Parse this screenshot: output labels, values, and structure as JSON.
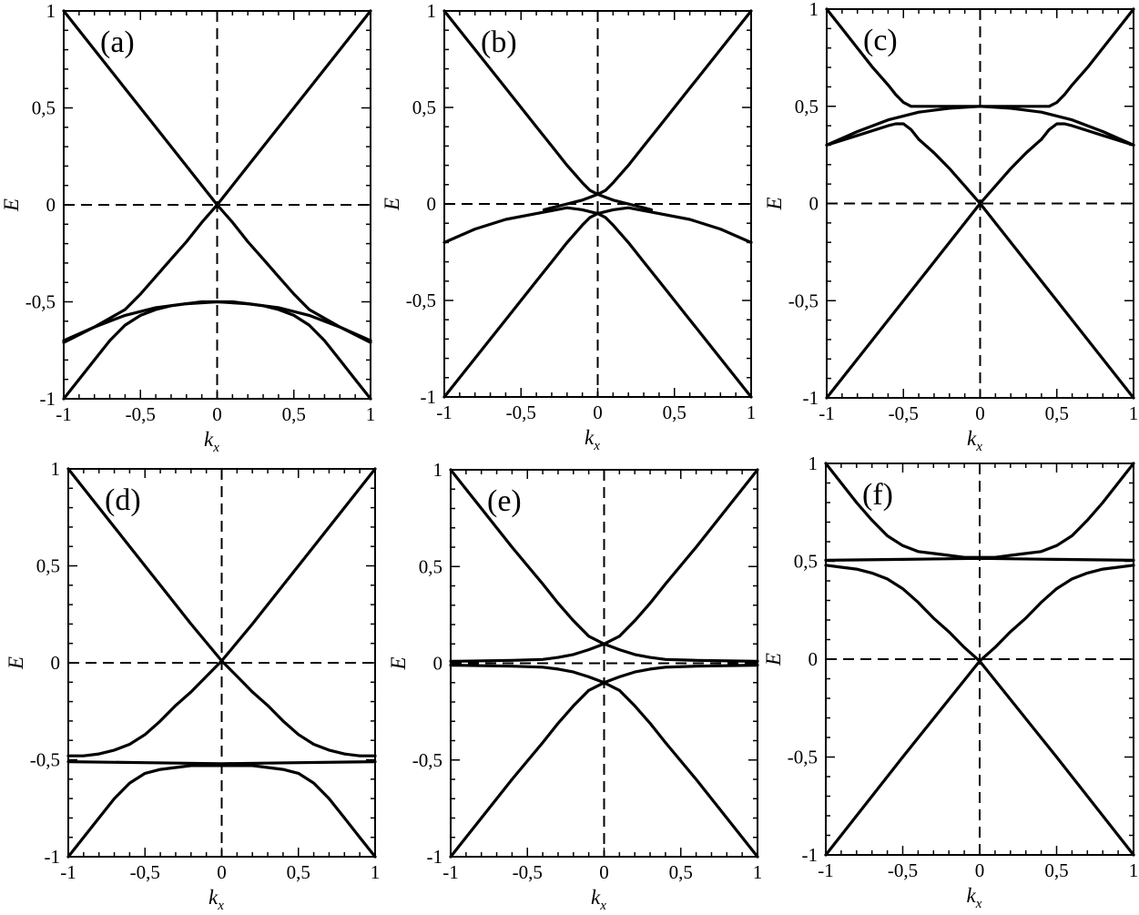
{
  "chart_data": [
    {
      "type": "line",
      "panel_label": "(a)",
      "xlabel": "k",
      "xlabel_sub": "x",
      "ylabel": "E",
      "xlim": [
        -1,
        1
      ],
      "ylim": [
        -1,
        1
      ],
      "xticks": [
        "-1",
        "-0,5",
        "0",
        "0,5",
        "1"
      ],
      "yticks": [
        "-1",
        "-0,5",
        "0",
        "0,5",
        "1"
      ],
      "reference_lines": {
        "x": 0,
        "y": 0,
        "style": "dashed"
      },
      "series": [
        {
          "x": [
            -1,
            -0.8,
            -0.6,
            -0.4,
            -0.2,
            0,
            0.2,
            0.4,
            0.6,
            0.8,
            1
          ],
          "y": [
            1,
            0.8,
            0.6,
            0.4,
            0.2,
            0,
            0.2,
            0.4,
            0.6,
            0.8,
            1
          ]
        },
        {
          "x": [
            -1,
            -0.8,
            -0.6,
            -0.5,
            -0.4,
            -0.3,
            -0.2,
            -0.1,
            0,
            0.1,
            0.2,
            0.3,
            0.4,
            0.5,
            0.6,
            0.8,
            1
          ],
          "y": [
            -0.71,
            -0.63,
            -0.54,
            -0.46,
            -0.37,
            -0.28,
            -0.19,
            -0.09,
            0,
            -0.09,
            -0.19,
            -0.28,
            -0.37,
            -0.46,
            -0.54,
            -0.63,
            -0.71
          ]
        },
        {
          "x": [
            -1,
            -0.8,
            -0.6,
            -0.4,
            -0.2,
            0,
            0.2,
            0.4,
            0.6,
            0.8,
            1
          ],
          "y": [
            -0.7,
            -0.63,
            -0.57,
            -0.53,
            -0.51,
            -0.5,
            -0.51,
            -0.53,
            -0.57,
            -0.63,
            -0.7
          ]
        },
        {
          "x": [
            -1,
            -0.9,
            -0.8,
            -0.7,
            -0.6,
            -0.5,
            -0.4,
            -0.3,
            -0.2,
            -0.1,
            0,
            0.1,
            0.2,
            0.3,
            0.4,
            0.5,
            0.6,
            0.7,
            0.8,
            0.9,
            1
          ],
          "y": [
            -1,
            -0.9,
            -0.8,
            -0.7,
            -0.62,
            -0.57,
            -0.54,
            -0.52,
            -0.51,
            -0.5,
            -0.5,
            -0.5,
            -0.51,
            -0.52,
            -0.54,
            -0.57,
            -0.62,
            -0.7,
            -0.8,
            -0.9,
            -1
          ]
        }
      ]
    },
    {
      "type": "line",
      "panel_label": "(b)",
      "xlabel": "k",
      "xlabel_sub": "x",
      "ylabel": "E",
      "xlim": [
        -1,
        1
      ],
      "ylim": [
        -1,
        1
      ],
      "xticks": [
        "-1",
        "-0,5",
        "0",
        "0,5",
        "1"
      ],
      "yticks": [
        "-1",
        "-0,5",
        "0",
        "0,5",
        "1"
      ],
      "reference_lines": {
        "x": 0,
        "y": 0,
        "style": "dashed"
      },
      "series": [
        {
          "x": [
            -1,
            -0.8,
            -0.6,
            -0.4,
            -0.3,
            -0.2,
            -0.1,
            -0.05,
            0,
            0.05,
            0.1,
            0.2,
            0.3,
            0.4,
            0.6,
            0.8,
            1
          ],
          "y": [
            1,
            0.8,
            0.6,
            0.4,
            0.3,
            0.2,
            0.11,
            0.07,
            0.05,
            0.07,
            0.11,
            0.2,
            0.3,
            0.4,
            0.6,
            0.8,
            1
          ]
        },
        {
          "x": [
            -1,
            -0.8,
            -0.6,
            -0.4,
            -0.3,
            -0.2,
            -0.1,
            -0.05,
            0,
            0.05,
            0.1,
            0.2,
            0.3,
            0.4,
            0.6,
            0.8,
            1
          ],
          "y": [
            -1,
            -0.8,
            -0.6,
            -0.4,
            -0.3,
            -0.2,
            -0.11,
            -0.07,
            -0.05,
            -0.07,
            -0.11,
            -0.2,
            -0.3,
            -0.4,
            -0.6,
            -0.8,
            -1
          ]
        },
        {
          "x": [
            -0.35,
            -0.3,
            -0.2,
            -0.1,
            -0.05,
            0,
            0.05,
            0.1,
            0.2,
            0.3,
            0.35
          ],
          "y": [
            -0.03,
            -0.02,
            0.0,
            0.02,
            0.035,
            0.05,
            0.035,
            0.02,
            0.0,
            -0.02,
            -0.03
          ]
        },
        {
          "x": [
            -1,
            -0.8,
            -0.6,
            -0.4,
            -0.2,
            -0.1,
            0,
            0.1,
            0.2,
            0.4,
            0.6,
            0.8,
            1
          ],
          "y": [
            -0.2,
            -0.13,
            -0.08,
            -0.05,
            -0.02,
            -0.03,
            -0.05,
            -0.03,
            -0.02,
            -0.05,
            -0.08,
            -0.13,
            -0.2
          ]
        }
      ]
    },
    {
      "type": "line",
      "panel_label": "(c)",
      "xlabel": "k",
      "xlabel_sub": "x",
      "ylabel": "E",
      "xlim": [
        -1,
        1
      ],
      "ylim": [
        -1,
        1
      ],
      "xticks": [
        "-1",
        "-0,5",
        "0",
        "0,5",
        "1"
      ],
      "yticks": [
        "-1",
        "-0,5",
        "0",
        "0,5",
        "1"
      ],
      "reference_lines": {
        "x": 0,
        "y": 0,
        "style": "dashed"
      },
      "series": [
        {
          "x": [
            -1,
            -0.9,
            -0.8,
            -0.7,
            -0.6,
            -0.55,
            -0.5,
            -0.45,
            -0.4,
            -0.3,
            -0.2,
            0,
            0.2,
            0.3,
            0.4,
            0.45,
            0.5,
            0.55,
            0.6,
            0.7,
            0.8,
            0.9,
            1
          ],
          "y": [
            1,
            0.9,
            0.8,
            0.7,
            0.61,
            0.56,
            0.52,
            0.5,
            0.5,
            0.5,
            0.5,
            0.5,
            0.5,
            0.5,
            0.5,
            0.5,
            0.52,
            0.56,
            0.61,
            0.7,
            0.8,
            0.9,
            1
          ]
        },
        {
          "x": [
            -1,
            -0.8,
            -0.6,
            -0.4,
            -0.2,
            0,
            0.2,
            0.4,
            0.6,
            0.8,
            1
          ],
          "y": [
            0.3,
            0.37,
            0.43,
            0.47,
            0.49,
            0.5,
            0.49,
            0.47,
            0.43,
            0.37,
            0.3
          ]
        },
        {
          "x": [
            -1,
            -0.8,
            -0.6,
            -0.55,
            -0.5,
            -0.45,
            -0.4,
            -0.3,
            -0.2,
            -0.1,
            0,
            0.1,
            0.2,
            0.3,
            0.4,
            0.45,
            0.5,
            0.55,
            0.6,
            0.8,
            1
          ],
          "y": [
            0.3,
            0.35,
            0.4,
            0.41,
            0.41,
            0.38,
            0.33,
            0.26,
            0.18,
            0.09,
            0,
            0.09,
            0.18,
            0.26,
            0.33,
            0.38,
            0.41,
            0.41,
            0.4,
            0.35,
            0.3
          ]
        },
        {
          "x": [
            -1,
            -0.5,
            0,
            0.5,
            1
          ],
          "y": [
            -1,
            -0.5,
            0,
            -0.5,
            -1
          ]
        }
      ]
    },
    {
      "type": "line",
      "panel_label": "(d)",
      "xlabel": "k",
      "xlabel_sub": "x",
      "ylabel": "E",
      "xlim": [
        -1,
        1
      ],
      "ylim": [
        -1,
        1
      ],
      "xticks": [
        "-1",
        "-0,5",
        "0",
        "0,5",
        "1"
      ],
      "yticks": [
        "-1",
        "-0,5",
        "0",
        "0,5",
        "1"
      ],
      "reference_lines": {
        "x": 0,
        "y": 0,
        "style": "dashed"
      },
      "series": [
        {
          "x": [
            -1,
            -0.8,
            -0.6,
            -0.4,
            -0.2,
            0,
            0.2,
            0.4,
            0.6,
            0.8,
            1
          ],
          "y": [
            1,
            0.8,
            0.6,
            0.4,
            0.2,
            0.01,
            0.2,
            0.4,
            0.6,
            0.8,
            1
          ]
        },
        {
          "x": [
            -1,
            -0.9,
            -0.8,
            -0.7,
            -0.6,
            -0.5,
            -0.4,
            -0.3,
            -0.2,
            -0.1,
            0,
            0.1,
            0.2,
            0.3,
            0.4,
            0.5,
            0.6,
            0.7,
            0.8,
            0.9,
            1
          ],
          "y": [
            -0.48,
            -0.48,
            -0.47,
            -0.45,
            -0.42,
            -0.37,
            -0.3,
            -0.22,
            -0.15,
            -0.07,
            0.01,
            -0.07,
            -0.15,
            -0.22,
            -0.3,
            -0.37,
            -0.42,
            -0.45,
            -0.47,
            -0.48,
            -0.48
          ]
        },
        {
          "x": [
            -1,
            -0.5,
            0,
            0.5,
            1
          ],
          "y": [
            -0.51,
            -0.515,
            -0.52,
            -0.515,
            -0.51
          ]
        },
        {
          "x": [
            -1,
            -0.9,
            -0.8,
            -0.7,
            -0.6,
            -0.5,
            -0.4,
            -0.3,
            -0.2,
            -0.1,
            0,
            0.1,
            0.2,
            0.3,
            0.4,
            0.5,
            0.6,
            0.7,
            0.8,
            0.9,
            1
          ],
          "y": [
            -1,
            -0.9,
            -0.8,
            -0.7,
            -0.62,
            -0.57,
            -0.55,
            -0.54,
            -0.53,
            -0.53,
            -0.53,
            -0.53,
            -0.53,
            -0.54,
            -0.55,
            -0.57,
            -0.62,
            -0.7,
            -0.8,
            -0.9,
            -1
          ]
        }
      ]
    },
    {
      "type": "line",
      "panel_label": "(e)",
      "xlabel": "k",
      "xlabel_sub": "x",
      "ylabel": "E",
      "xlim": [
        -1,
        1
      ],
      "ylim": [
        -1,
        1
      ],
      "xticks": [
        "-1",
        "-0,5",
        "0",
        "0,5",
        "1"
      ],
      "yticks": [
        "-1",
        "-0,5",
        "0",
        "0,5",
        "1"
      ],
      "reference_lines": {
        "x": 0,
        "y": 0,
        "style": "dashed"
      },
      "series": [
        {
          "x": [
            -1,
            -0.8,
            -0.6,
            -0.4,
            -0.3,
            -0.2,
            -0.1,
            0,
            0.1,
            0.2,
            0.3,
            0.4,
            0.6,
            0.8,
            1
          ],
          "y": [
            1,
            0.8,
            0.6,
            0.41,
            0.31,
            0.22,
            0.14,
            0.1,
            0.14,
            0.22,
            0.31,
            0.41,
            0.6,
            0.8,
            1
          ]
        },
        {
          "x": [
            -1,
            -0.8,
            -0.6,
            -0.4,
            -0.3,
            -0.2,
            -0.1,
            0,
            0.1,
            0.2,
            0.3,
            0.4,
            0.6,
            0.8,
            1
          ],
          "y": [
            -1,
            -0.8,
            -0.6,
            -0.41,
            -0.31,
            -0.22,
            -0.14,
            -0.1,
            -0.14,
            -0.22,
            -0.31,
            -0.41,
            -0.6,
            -0.8,
            -1
          ]
        },
        {
          "x": [
            -1,
            -0.6,
            -0.4,
            -0.3,
            -0.2,
            -0.1,
            0,
            0.1,
            0.2,
            0.3,
            0.4,
            0.6,
            1
          ],
          "y": [
            0.01,
            0.015,
            0.02,
            0.03,
            0.045,
            0.07,
            0.1,
            0.07,
            0.045,
            0.03,
            0.02,
            0.015,
            0.01
          ]
        },
        {
          "x": [
            -1,
            -0.6,
            -0.4,
            -0.3,
            -0.2,
            -0.1,
            0,
            0.1,
            0.2,
            0.3,
            0.4,
            0.6,
            1
          ],
          "y": [
            -0.01,
            -0.015,
            -0.02,
            -0.03,
            -0.045,
            -0.07,
            -0.1,
            -0.07,
            -0.045,
            -0.03,
            -0.02,
            -0.015,
            -0.01
          ]
        }
      ]
    },
    {
      "type": "line",
      "panel_label": "(f)",
      "xlabel": "k",
      "xlabel_sub": "x",
      "ylabel": "E",
      "xlim": [
        -1,
        1
      ],
      "ylim": [
        -1,
        1
      ],
      "xticks": [
        "-1",
        "-0,5",
        "0",
        "0,5",
        "1"
      ],
      "yticks": [
        "-1",
        "-0,5",
        "0",
        "0,5",
        "1"
      ],
      "reference_lines": {
        "x": 0,
        "y": 0,
        "style": "dashed"
      },
      "series": [
        {
          "x": [
            -1,
            -0.9,
            -0.8,
            -0.7,
            -0.6,
            -0.5,
            -0.4,
            -0.3,
            -0.2,
            -0.1,
            0,
            0.1,
            0.2,
            0.3,
            0.4,
            0.5,
            0.6,
            0.7,
            0.8,
            0.9,
            1
          ],
          "y": [
            1,
            0.9,
            0.8,
            0.71,
            0.63,
            0.58,
            0.55,
            0.54,
            0.53,
            0.52,
            0.52,
            0.52,
            0.53,
            0.54,
            0.55,
            0.58,
            0.63,
            0.71,
            0.8,
            0.9,
            1
          ]
        },
        {
          "x": [
            -1,
            -0.5,
            0,
            0.5,
            1
          ],
          "y": [
            0.505,
            0.51,
            0.515,
            0.51,
            0.505
          ]
        },
        {
          "x": [
            -1,
            -0.9,
            -0.8,
            -0.7,
            -0.6,
            -0.5,
            -0.4,
            -0.3,
            -0.2,
            -0.1,
            0,
            0.1,
            0.2,
            0.3,
            0.4,
            0.5,
            0.6,
            0.7,
            0.8,
            0.9,
            1
          ],
          "y": [
            0.48,
            0.47,
            0.46,
            0.44,
            0.41,
            0.36,
            0.29,
            0.21,
            0.14,
            0.06,
            -0.01,
            0.06,
            0.14,
            0.21,
            0.29,
            0.36,
            0.41,
            0.44,
            0.46,
            0.47,
            0.48
          ]
        },
        {
          "x": [
            -1,
            -0.5,
            0,
            0.5,
            1
          ],
          "y": [
            -1,
            -0.5,
            -0.01,
            -0.5,
            -1
          ]
        }
      ]
    }
  ]
}
